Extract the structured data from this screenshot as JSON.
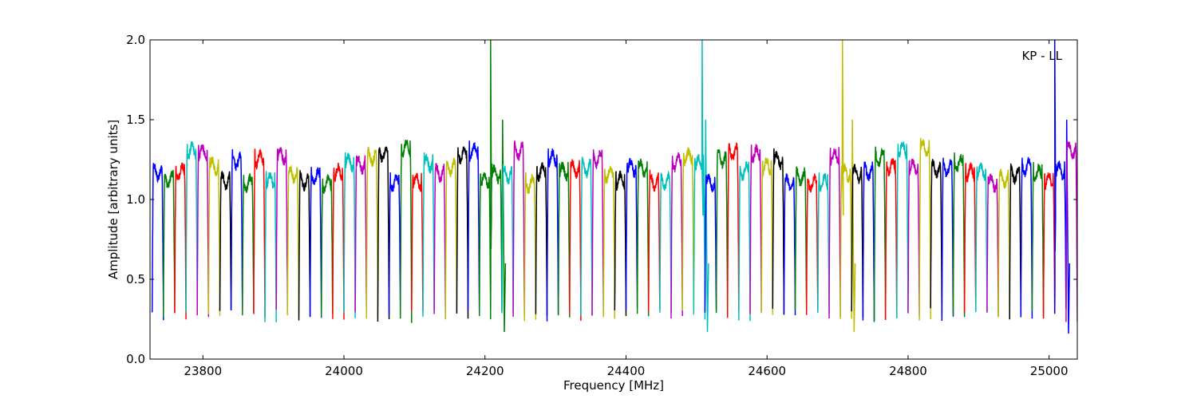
{
  "chart_data": {
    "type": "line",
    "annotation": "KP - LL",
    "xlabel": "Frequency [MHz]",
    "ylabel": "Amplitude [arbitrary units]",
    "xlim": [
      23725,
      25040
    ],
    "ylim": [
      0.0,
      2.0
    ],
    "xticks": [
      23800,
      24000,
      24200,
      24400,
      24600,
      24800,
      25000
    ],
    "yticks": [
      0.0,
      0.5,
      1.0,
      1.5,
      2.0
    ],
    "ytick_labels": [
      "0.0",
      "0.5",
      "1.0",
      "1.5",
      "2.0"
    ],
    "grid": false,
    "legend": "none",
    "series_colors": [
      "#0000ff",
      "#008000",
      "#ff0000",
      "#00bfbf",
      "#bf00bf",
      "#bfbf00",
      "#000000"
    ],
    "channel_width_mhz": 16,
    "channel_start_mhz": 23728,
    "channel_count": 82,
    "typical_peak": 1.2,
    "typical_floor": 0.3,
    "spikes": [
      {
        "x": 24208,
        "y": 2.0,
        "min": 0.17,
        "color": "#008000"
      },
      {
        "x": 24508,
        "y": 2.0,
        "min": 0.17,
        "color": "#00bfbf"
      },
      {
        "x": 24707,
        "y": 2.0,
        "min": 0.17,
        "color": "#bfbf00"
      },
      {
        "x": 25008,
        "y": 2.0,
        "min": 0.16,
        "color": "#0000ff"
      }
    ]
  }
}
